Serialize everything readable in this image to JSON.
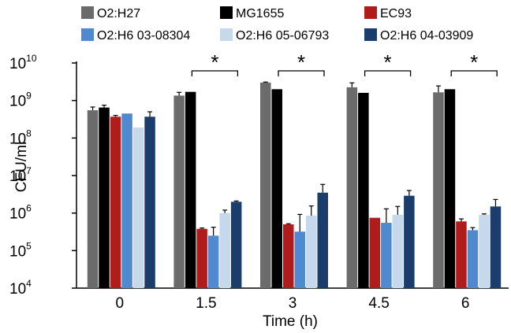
{
  "chart_data": {
    "type": "bar",
    "xlabel": "Time (h)",
    "ylabel": "CFU/ml",
    "yscale": "log",
    "ylim": [
      10000,
      10000000000
    ],
    "y_ticks": [
      {
        "base": "10",
        "exp": "4",
        "value": 10000
      },
      {
        "base": "10",
        "exp": "5",
        "value": 100000
      },
      {
        "base": "10",
        "exp": "6",
        "value": 1000000
      },
      {
        "base": "10",
        "exp": "7",
        "value": 10000000
      },
      {
        "base": "10",
        "exp": "8",
        "value": 100000000
      },
      {
        "base": "10",
        "exp": "9",
        "value": 1000000000
      },
      {
        "base": "10",
        "exp": "10",
        "value": 10000000000
      }
    ],
    "categories": [
      "0",
      "1.5",
      "3",
      "4.5",
      "6"
    ],
    "legend_position": "top",
    "series": [
      {
        "name": "O2:H27",
        "color": "#6b6b6b",
        "values": [
          550000000,
          1350000000,
          3000000000,
          2250000000,
          1650000000
        ],
        "errors": [
          120000000,
          300000000,
          100000000,
          700000000,
          800000000
        ]
      },
      {
        "name": "MG1655",
        "color": "#000000",
        "values": [
          650000000,
          1700000000,
          2000000000,
          1600000000,
          2000000000
        ],
        "errors": [
          100000000,
          0,
          0,
          0,
          0
        ]
      },
      {
        "name": "EC93",
        "color": "#b01c1c",
        "values": [
          370000000,
          380000,
          500000,
          750000,
          600000
        ],
        "errors": [
          30000000,
          20000,
          20000,
          0,
          100000
        ]
      },
      {
        "name": "O2:H6 03-08304",
        "color": "#4f89cf",
        "values": [
          450000000,
          250000,
          320000,
          550000,
          350000
        ],
        "errors": [
          0,
          170000,
          600000,
          750000,
          60000
        ]
      },
      {
        "name": "O2:H6 05-06793",
        "color": "#c6d8ec",
        "values": [
          190000000,
          1000000,
          850000,
          900000,
          900000
        ],
        "errors": [
          0,
          200000,
          700000,
          600000,
          50000
        ]
      },
      {
        "name": "O2:H6 04-03909",
        "color": "#1b3d6b",
        "values": [
          370000000,
          2000000,
          3500000,
          2900000,
          1500000
        ],
        "errors": [
          130000000,
          100000,
          2300000,
          1100000,
          800000
        ]
      }
    ],
    "annotations": [
      {
        "text": "*",
        "category": "1.5"
      },
      {
        "text": "*",
        "category": "3"
      },
      {
        "text": "*",
        "category": "4.5"
      },
      {
        "text": "*",
        "category": "6"
      }
    ]
  }
}
